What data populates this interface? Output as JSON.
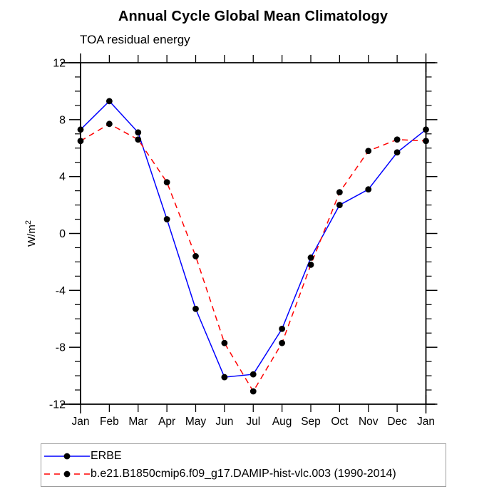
{
  "title": "Annual Cycle Global Mean Climatology",
  "subtitle": "TOA residual energy",
  "background_color": "#ffffff",
  "axis_color": "#000000",
  "chart_data": {
    "type": "line",
    "categories": [
      "Jan",
      "Feb",
      "Mar",
      "Apr",
      "May",
      "Jun",
      "Jul",
      "Aug",
      "Sep",
      "Oct",
      "Nov",
      "Dec",
      "Jan"
    ],
    "series": [
      {
        "name": "ERBE",
        "color": "#0000ff",
        "line_style": "solid",
        "marker": "filled-circle",
        "marker_color": "#000000",
        "values": [
          7.3,
          9.3,
          7.1,
          1.0,
          -5.3,
          -10.1,
          -9.9,
          -6.7,
          -1.7,
          2.0,
          3.1,
          5.7,
          7.3
        ]
      },
      {
        "name": "b.e21.B1850cmip6.f09_g17.DAMIP-hist-vlc.003 (1990-2014)",
        "color": "#ff0000",
        "line_style": "dashed",
        "marker": "filled-circle",
        "marker_color": "#000000",
        "values": [
          6.5,
          7.7,
          6.6,
          3.6,
          -1.6,
          -7.7,
          -11.1,
          -7.7,
          -2.2,
          2.9,
          5.8,
          6.6,
          6.5
        ]
      }
    ],
    "xlabel": "",
    "ylabel": "W/m²",
    "ylim": [
      -12,
      12
    ],
    "ytick_major_interval": 4,
    "ytick_minor_interval": 1,
    "ytick_labels": [
      "-12",
      "-8",
      "-4",
      "0",
      "4",
      "8",
      "12"
    ],
    "grid": false,
    "legend_position": "bottom-left-box"
  }
}
